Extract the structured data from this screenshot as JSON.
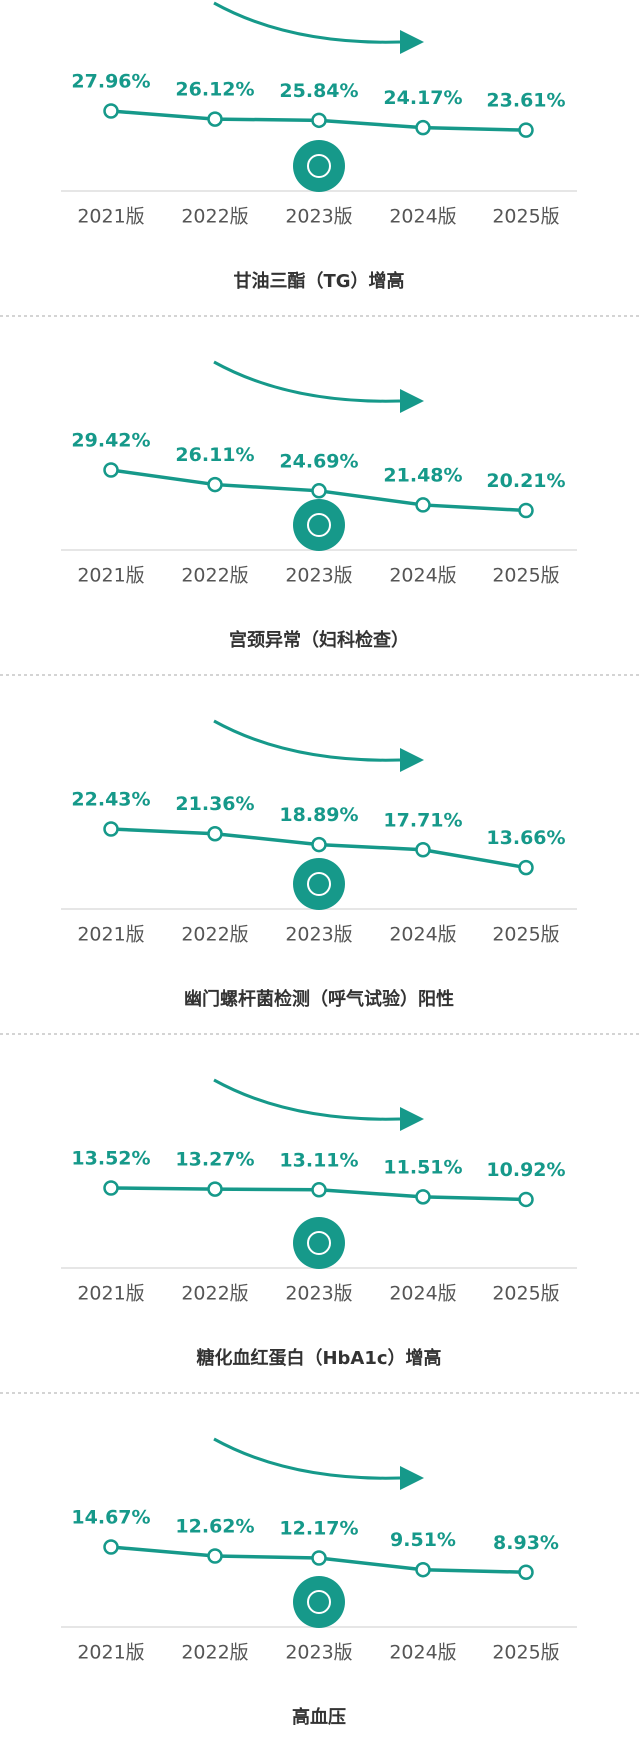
{
  "chart_data": [
    {
      "type": "line",
      "title": "甘油三酯（TG）增高",
      "color": "#16998a",
      "categories": [
        "2021版",
        "2022版",
        "2023版",
        "2024版",
        "2025版"
      ],
      "values": [
        27.96,
        26.12,
        25.84,
        24.17,
        23.61
      ],
      "value_labels": [
        "27.96%",
        "26.12%",
        "25.84%",
        "24.17%",
        "23.61%"
      ]
    },
    {
      "type": "line",
      "title": "宫颈异常（妇科检查）",
      "color": "#16998a",
      "categories": [
        "2021版",
        "2022版",
        "2023版",
        "2024版",
        "2025版"
      ],
      "values": [
        29.42,
        26.11,
        24.69,
        21.48,
        20.21
      ],
      "value_labels": [
        "29.42%",
        "26.11%",
        "24.69%",
        "21.48%",
        "20.21%"
      ]
    },
    {
      "type": "line",
      "title": "幽门螺杆菌检测（呼气试验）阳性",
      "color": "#16998a",
      "categories": [
        "2021版",
        "2022版",
        "2023版",
        "2024版",
        "2025版"
      ],
      "values": [
        22.43,
        21.36,
        18.89,
        17.71,
        13.66
      ],
      "value_labels": [
        "22.43%",
        "21.36%",
        "18.89%",
        "17.71%",
        "13.66%"
      ]
    },
    {
      "type": "line",
      "title": "糖化血红蛋白（HbA1c）增高",
      "color": "#16998a",
      "categories": [
        "2021版",
        "2022版",
        "2023版",
        "2024版",
        "2025版"
      ],
      "values": [
        13.52,
        13.27,
        13.11,
        11.51,
        10.92
      ],
      "value_labels": [
        "13.52%",
        "13.27%",
        "13.11%",
        "11.51%",
        "10.92%"
      ]
    },
    {
      "type": "line",
      "title": "高血压",
      "color": "#16998a",
      "categories": [
        "2021版",
        "2022版",
        "2023版",
        "2024版",
        "2025版"
      ],
      "values": [
        14.67,
        12.62,
        12.17,
        9.51,
        8.93
      ],
      "value_labels": [
        "14.67%",
        "12.62%",
        "12.17%",
        "9.51%",
        "8.93%"
      ]
    }
  ]
}
